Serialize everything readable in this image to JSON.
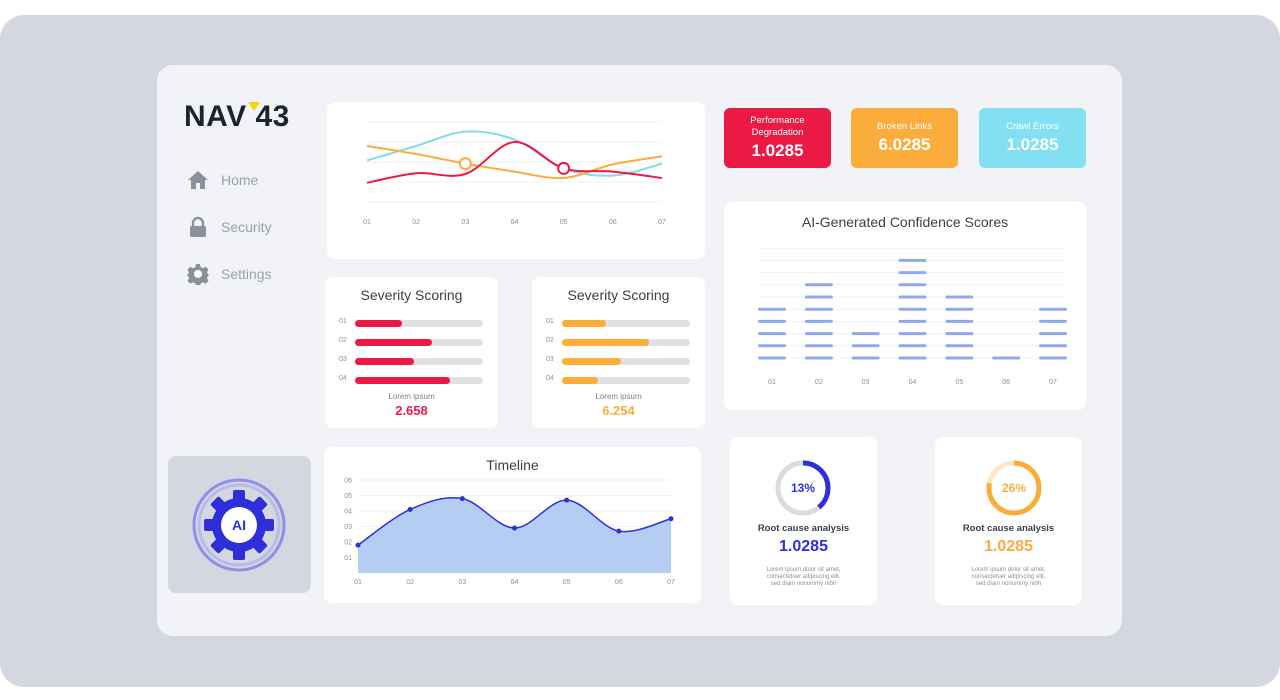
{
  "logo": {
    "text": "NAV 43",
    "mark_color": "#f5d617"
  },
  "sidebar": {
    "items": [
      {
        "label": "Home",
        "icon": "home-icon"
      },
      {
        "label": "Security",
        "icon": "lock-icon"
      },
      {
        "label": "Settings",
        "icon": "gear-icon"
      }
    ]
  },
  "ai_badge": {
    "label": "AI",
    "color": "#2e2fd9"
  },
  "kpis": [
    {
      "title": "Performance\nDegradation",
      "value": "1.0285",
      "color": "#ec1944"
    },
    {
      "title": "Broken Links",
      "value": "6.0285",
      "color": "#fbac3b"
    },
    {
      "title": "Crawl Errors",
      "value": "1.0285",
      "color": "#82e0f2"
    }
  ],
  "line_card": {
    "chart_data": {
      "type": "line",
      "x": [
        "01",
        "02",
        "03",
        "04",
        "05",
        "06",
        "07"
      ],
      "series": [
        {
          "color": "#82dbe8",
          "values": [
            52,
            70,
            88,
            78,
            42,
            33,
            48
          ]
        },
        {
          "color": "#fbac3b",
          "values": [
            70,
            60,
            48,
            38,
            30,
            47,
            57
          ]
        },
        {
          "color": "#ec1944",
          "values": [
            24,
            36,
            35,
            75,
            42,
            38,
            30
          ]
        }
      ],
      "highlighted_points": [
        {
          "series": 1,
          "x": "03",
          "value": 48
        },
        {
          "series": 2,
          "x": "05",
          "value": 42
        }
      ]
    }
  },
  "severity": [
    {
      "title": "Severity Scoring",
      "color": "#ec1944",
      "rows": [
        {
          "label": "01",
          "value": 0.37
        },
        {
          "label": "02",
          "value": 0.6
        },
        {
          "label": "03",
          "value": 0.46
        },
        {
          "label": "04",
          "value": 0.74
        }
      ],
      "caption": "Lorem ipsum",
      "value": "2.658"
    },
    {
      "title": "Severity Scoring",
      "color": "#fbac3b",
      "rows": [
        {
          "label": "01",
          "value": 0.34
        },
        {
          "label": "02",
          "value": 0.68
        },
        {
          "label": "03",
          "value": 0.46
        },
        {
          "label": "04",
          "value": 0.28
        }
      ],
      "caption": "Lorem ipsum",
      "value": "6.254"
    }
  ],
  "confidence": {
    "title": "AI-Generated Confidence Scores",
    "chart_data": {
      "type": "bar",
      "categories": [
        "01",
        "02",
        "03",
        "04",
        "05",
        "06",
        "07"
      ],
      "values": [
        5,
        7,
        3,
        9,
        6,
        1,
        5
      ],
      "color": "#8fa9ef"
    }
  },
  "timeline": {
    "title": "Timeline",
    "chart_data": {
      "type": "area",
      "x": [
        "01",
        "02",
        "03",
        "04",
        "05",
        "06",
        "07"
      ],
      "y_ticks": [
        "01",
        "02",
        "03",
        "04",
        "05",
        "06"
      ],
      "ylim": [
        0,
        6
      ],
      "values": [
        1.8,
        4.1,
        4.8,
        2.9,
        4.7,
        2.7,
        3.5
      ],
      "line_color": "#2e2fd9",
      "fill_color": "#b5cdf2"
    }
  },
  "root_cause": [
    {
      "pct": "13%",
      "fraction": 0.13,
      "color": "#2e2fd9",
      "title": "Root cause analysis",
      "value": "1.0285",
      "desc": "Lorem ipsum dolor sit amet,\nconsectetuer adipiscing elit,\nsed diam nonummy nibh"
    },
    {
      "pct": "26%",
      "fraction": 0.26,
      "color": "#fbac3b",
      "title": "Root cause analysis",
      "value": "1.0285",
      "desc": "Lorem ipsum dolor sit amet,\nconsectetuer adipiscing elit,\nsed diam nonummy nibh"
    }
  ]
}
